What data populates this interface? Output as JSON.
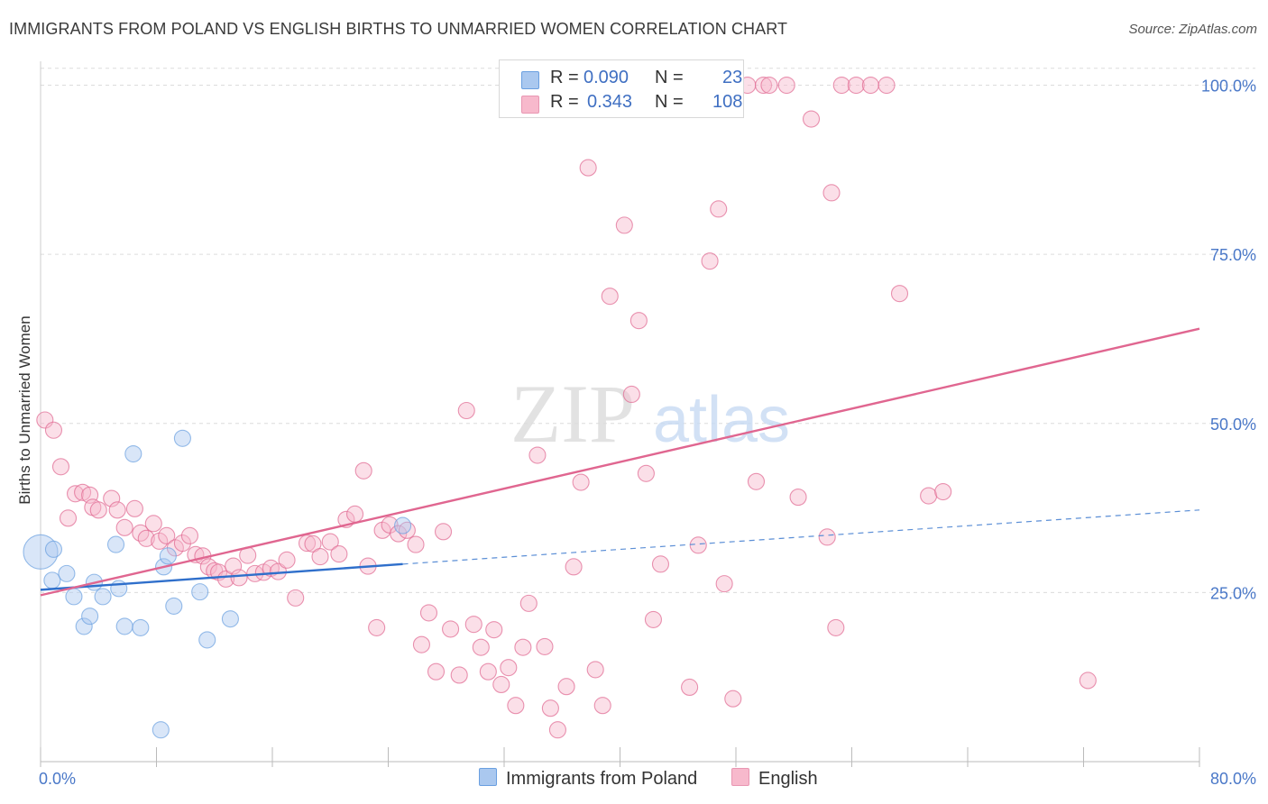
{
  "title": "IMMIGRANTS FROM POLAND VS ENGLISH BIRTHS TO UNMARRIED WOMEN CORRELATION CHART",
  "source": "Source: ZipAtlas.com",
  "watermark": {
    "zip": "ZIP",
    "atlas": "atlas"
  },
  "legend": {
    "rows": [
      {
        "r_label": "R =",
        "r_value": "0.090",
        "n_label": "N =",
        "n_value": "23",
        "color": "#aac8ef"
      },
      {
        "r_label": "R =",
        "r_value": "0.343",
        "n_label": "N =",
        "n_value": "108",
        "color": "#f7b9cc"
      }
    ]
  },
  "chart_data": {
    "type": "scatter",
    "title": "IMMIGRANTS FROM POLAND VS ENGLISH BIRTHS TO UNMARRIED WOMEN CORRELATION CHART",
    "xlabel": "",
    "ylabel": "Births to Unmarried Women",
    "xlim": [
      0,
      80
    ],
    "ylim": [
      0,
      103
    ],
    "x_tick_labels": [
      "0.0%",
      "80.0%"
    ],
    "y_ticks": [
      25,
      50,
      75,
      100
    ],
    "y_tick_labels": [
      "25.0%",
      "50.0%",
      "75.0%",
      "100.0%"
    ],
    "grid": true,
    "legend_position": "top-center",
    "series": [
      {
        "name": "Immigrants from Poland",
        "color": "#6a9fe0",
        "fill": "#aac8ef",
        "trend": {
          "x0": 0,
          "y0": 25.4,
          "x1": 25,
          "y1": 29.2,
          "dashed_to_x": 80,
          "dashed_to_y": 37.2
        },
        "points": [
          [
            0,
            31
          ],
          [
            0.9,
            31.4
          ],
          [
            0.8,
            26.8
          ],
          [
            1.8,
            27.8
          ],
          [
            2.3,
            24.4
          ],
          [
            3,
            20
          ],
          [
            3.4,
            21.5
          ],
          [
            3.7,
            26.5
          ],
          [
            4.3,
            24.4
          ],
          [
            5.2,
            32.1
          ],
          [
            5.4,
            25.6
          ],
          [
            5.8,
            20
          ],
          [
            6.4,
            45.5
          ],
          [
            6.9,
            19.8
          ],
          [
            8.3,
            4.7
          ],
          [
            8.5,
            28.8
          ],
          [
            8.8,
            30.4
          ],
          [
            9.2,
            23
          ],
          [
            9.8,
            47.8
          ],
          [
            11,
            25.1
          ],
          [
            11.5,
            18
          ],
          [
            13.1,
            21.1
          ],
          [
            25,
            34.9
          ]
        ]
      },
      {
        "name": "English",
        "color": "#e06690",
        "fill": "#f7b9cc",
        "trend": {
          "x0": 0,
          "y0": 24.6,
          "x1": 80,
          "y1": 64
        },
        "points": [
          [
            0.3,
            50.5
          ],
          [
            0.9,
            49
          ],
          [
            1.4,
            43.6
          ],
          [
            1.9,
            36
          ],
          [
            2.4,
            39.6
          ],
          [
            2.9,
            39.8
          ],
          [
            3.4,
            39.4
          ],
          [
            3.6,
            37.6
          ],
          [
            4,
            37.2
          ],
          [
            4.9,
            38.9
          ],
          [
            5.3,
            37.2
          ],
          [
            5.8,
            34.6
          ],
          [
            6.5,
            37.4
          ],
          [
            6.9,
            33.8
          ],
          [
            7.3,
            33
          ],
          [
            7.8,
            35.2
          ],
          [
            8.2,
            32.6
          ],
          [
            8.7,
            33.4
          ],
          [
            9.3,
            31.6
          ],
          [
            9.8,
            32.3
          ],
          [
            10.3,
            33.4
          ],
          [
            10.7,
            30.6
          ],
          [
            11.2,
            30.4
          ],
          [
            11.6,
            28.8
          ],
          [
            12,
            28.2
          ],
          [
            12.3,
            28
          ],
          [
            12.8,
            27
          ],
          [
            13.3,
            28.9
          ],
          [
            13.7,
            27.2
          ],
          [
            14.3,
            30.5
          ],
          [
            14.8,
            27.8
          ],
          [
            15.4,
            28
          ],
          [
            15.9,
            28.6
          ],
          [
            16.4,
            28.1
          ],
          [
            17,
            29.8
          ],
          [
            17.6,
            24.2
          ],
          [
            18.4,
            32.3
          ],
          [
            18.8,
            32.2
          ],
          [
            19.3,
            30.3
          ],
          [
            20,
            32.5
          ],
          [
            20.6,
            30.7
          ],
          [
            21.1,
            35.8
          ],
          [
            21.7,
            36.6
          ],
          [
            22.3,
            43
          ],
          [
            22.6,
            28.9
          ],
          [
            23.2,
            19.8
          ],
          [
            23.6,
            34.2
          ],
          [
            24.1,
            35
          ],
          [
            24.7,
            33.7
          ],
          [
            25.3,
            34.2
          ],
          [
            25.9,
            32.1
          ],
          [
            26.3,
            17.3
          ],
          [
            26.8,
            22
          ],
          [
            27.3,
            13.3
          ],
          [
            27.8,
            34
          ],
          [
            28.3,
            19.6
          ],
          [
            28.9,
            12.8
          ],
          [
            29.4,
            51.9
          ],
          [
            29.9,
            20.3
          ],
          [
            30.4,
            16.9
          ],
          [
            30.9,
            13.3
          ],
          [
            31.3,
            19.5
          ],
          [
            31.8,
            11.4
          ],
          [
            32.3,
            13.9
          ],
          [
            32.8,
            8.3
          ],
          [
            33.3,
            16.9
          ],
          [
            33.7,
            23.4
          ],
          [
            34.3,
            45.3
          ],
          [
            34.8,
            17
          ],
          [
            35.2,
            7.9
          ],
          [
            35.7,
            4.7
          ],
          [
            36.3,
            11.1
          ],
          [
            36.8,
            28.8
          ],
          [
            37.3,
            41.3
          ],
          [
            37.8,
            87.8
          ],
          [
            38.3,
            13.6
          ],
          [
            38.8,
            8.3
          ],
          [
            39.3,
            68.8
          ],
          [
            40.3,
            79.3
          ],
          [
            40.8,
            54.3
          ],
          [
            41.3,
            65.2
          ],
          [
            41.8,
            42.6
          ],
          [
            42.3,
            21
          ],
          [
            42.8,
            29.2
          ],
          [
            43.7,
            100
          ],
          [
            44.3,
            100
          ],
          [
            44.8,
            11
          ],
          [
            45.4,
            32
          ],
          [
            46.2,
            74
          ],
          [
            46.8,
            81.7
          ],
          [
            47.2,
            26.3
          ],
          [
            47.8,
            9.3
          ],
          [
            48.8,
            100
          ],
          [
            49.4,
            41.4
          ],
          [
            49.9,
            100
          ],
          [
            50.3,
            100
          ],
          [
            51.5,
            100
          ],
          [
            52.3,
            39.1
          ],
          [
            53.2,
            95
          ],
          [
            54.3,
            33.2
          ],
          [
            54.6,
            84.1
          ],
          [
            54.9,
            19.8
          ],
          [
            55.3,
            100
          ],
          [
            56.3,
            100
          ],
          [
            57.3,
            100
          ],
          [
            58.4,
            100
          ],
          [
            59.3,
            69.2
          ],
          [
            61.3,
            39.3
          ],
          [
            62.3,
            39.9
          ],
          [
            72.3,
            12
          ]
        ]
      }
    ]
  },
  "bottom_legend": {
    "items": [
      {
        "label": "Immigrants from Poland",
        "color": "#aac8ef"
      },
      {
        "label": "English",
        "color": "#f7b9cc"
      }
    ]
  }
}
